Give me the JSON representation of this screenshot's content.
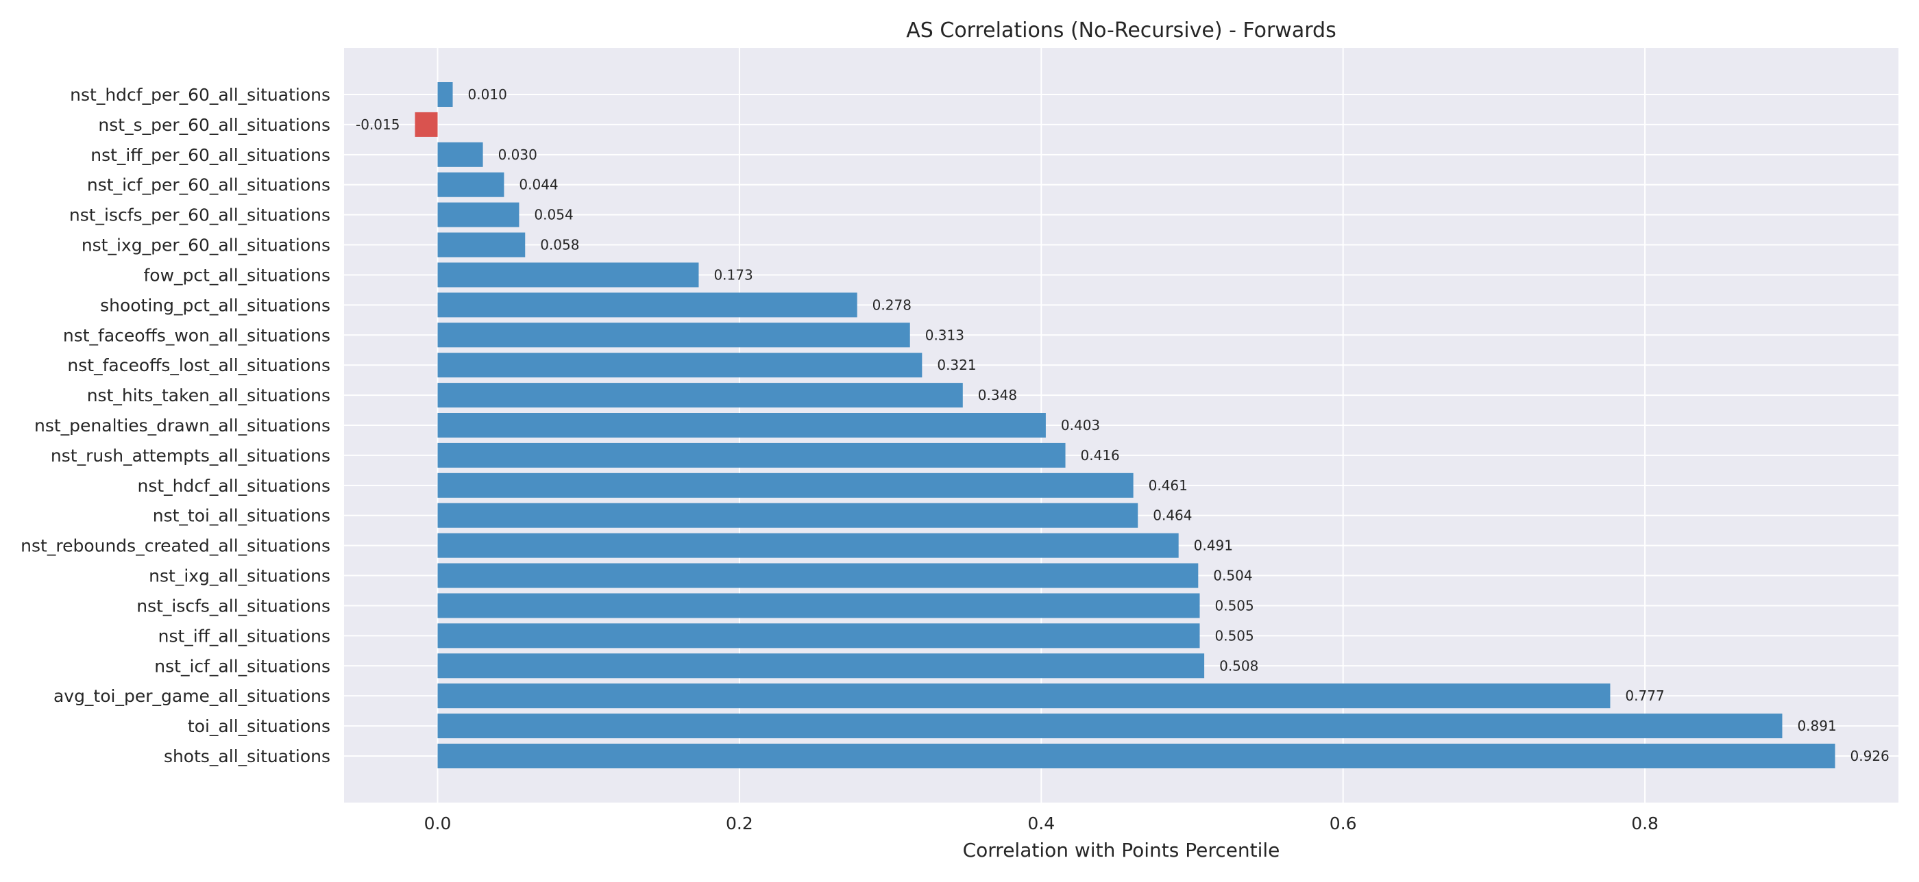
{
  "chart_data": {
    "type": "bar",
    "orientation": "horizontal",
    "title": "AS Correlations (No-Recursive) - Forwards",
    "xlabel": "Correlation with Points Percentile",
    "ylabel": "",
    "xlim": [
      -0.062,
      0.968
    ],
    "xticks": [
      0.0,
      0.2,
      0.4,
      0.6,
      0.8
    ],
    "xtick_labels": [
      "0.0",
      "0.2",
      "0.4",
      "0.6",
      "0.8"
    ],
    "grid": true,
    "categories": [
      "nst_hdcf_per_60_all_situations",
      "nst_s_per_60_all_situations",
      "nst_iff_per_60_all_situations",
      "nst_icf_per_60_all_situations",
      "nst_iscfs_per_60_all_situations",
      "nst_ixg_per_60_all_situations",
      "fow_pct_all_situations",
      "shooting_pct_all_situations",
      "nst_faceoffs_won_all_situations",
      "nst_faceoffs_lost_all_situations",
      "nst_hits_taken_all_situations",
      "nst_penalties_drawn_all_situations",
      "nst_rush_attempts_all_situations",
      "nst_hdcf_all_situations",
      "nst_toi_all_situations",
      "nst_rebounds_created_all_situations",
      "nst_ixg_all_situations",
      "nst_iscfs_all_situations",
      "nst_iff_all_situations",
      "nst_icf_all_situations",
      "avg_toi_per_game_all_situations",
      "toi_all_situations",
      "shots_all_situations"
    ],
    "values": [
      0.01,
      -0.015,
      0.03,
      0.044,
      0.054,
      0.058,
      0.173,
      0.278,
      0.313,
      0.321,
      0.348,
      0.403,
      0.416,
      0.461,
      0.464,
      0.491,
      0.504,
      0.505,
      0.505,
      0.508,
      0.777,
      0.891,
      0.926
    ],
    "value_labels": [
      "0.010",
      "-0.015",
      "0.030",
      "0.044",
      "0.054",
      "0.058",
      "0.173",
      "0.278",
      "0.313",
      "0.321",
      "0.348",
      "0.403",
      "0.416",
      "0.461",
      "0.464",
      "0.491",
      "0.504",
      "0.505",
      "0.505",
      "0.508",
      "0.777",
      "0.891",
      "0.926"
    ],
    "colors": {
      "positive": "#4a8fc3",
      "negative": "#d9534f",
      "plot_background": "#eaeaf2",
      "grid": "#ffffff",
      "text": "#262626"
    }
  }
}
